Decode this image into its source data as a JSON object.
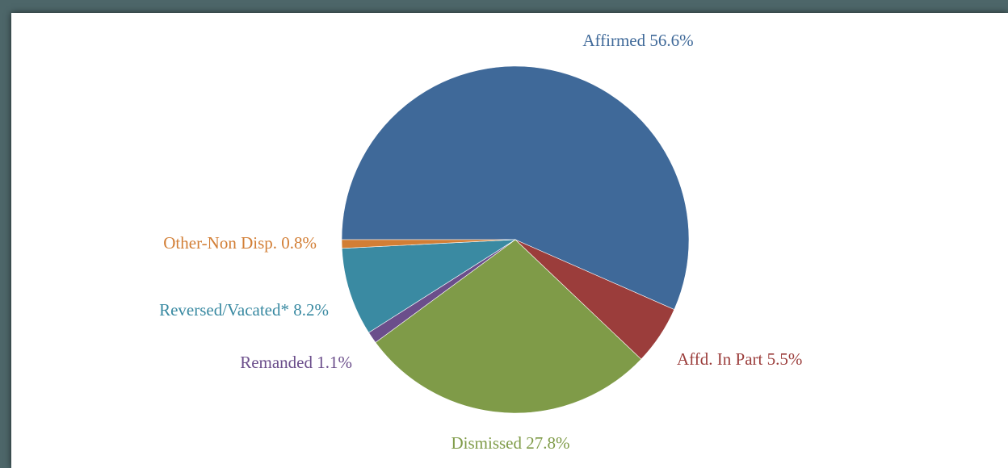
{
  "chart_data": {
    "type": "pie",
    "categories": [
      "Affirmed",
      "Affd. In Part",
      "Dismissed",
      "Remanded",
      "Reversed/Vacated*",
      "Other-Non Disp."
    ],
    "values": [
      56.6,
      5.5,
      27.8,
      1.1,
      8.2,
      0.8
    ],
    "value_labels": [
      "56.6%",
      "5.5%",
      "27.8%",
      "1.1%",
      "8.2%",
      "0.8%"
    ],
    "colors": [
      "#3f6999",
      "#9b3d3b",
      "#7f9b48",
      "#6b4e8b",
      "#3a8aa2",
      "#d27e35"
    ]
  }
}
